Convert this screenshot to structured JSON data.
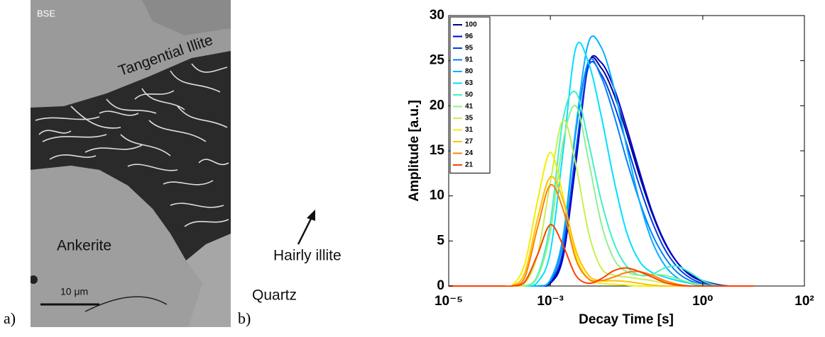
{
  "figure": {
    "panel_labels": [
      "a)",
      "b)"
    ],
    "image": {
      "mode": "BSE",
      "labels": [
        "Tangential Illite",
        "Ankerite",
        "Hairly illite",
        "Quartz"
      ],
      "scale_bar": "10 μm"
    }
  },
  "chart_data": {
    "type": "line",
    "x_label": "Decay Time [s]",
    "y_label": "Amplitude [a.u.]",
    "xscale": "log",
    "xlim": [
      1e-05,
      100
    ],
    "ylim": [
      0,
      30
    ],
    "xticks": [
      {
        "value": 1e-05,
        "label": "10⁻⁵"
      },
      {
        "value": 0.001,
        "label": "10⁻³"
      },
      {
        "value": 1,
        "label": "10⁰"
      },
      {
        "value": 100,
        "label": "10²"
      }
    ],
    "yticks": [
      0,
      5,
      10,
      15,
      20,
      25,
      30
    ],
    "grid": false,
    "legend": "upper left",
    "x": [
      1e-05,
      0.0001,
      0.000178,
      0.000316,
      0.000562,
      0.001,
      0.00178,
      0.00316,
      0.00562,
      0.01,
      0.0178,
      0.0316,
      0.0562,
      0.1,
      0.178,
      0.316,
      0.562,
      1,
      1.78,
      3.16,
      5.62,
      10
    ],
    "series": [
      {
        "name": "100",
        "color": "#00008f",
        "values": [
          0,
          0,
          0,
          0,
          0,
          0.4,
          3.6,
          14.1,
          24.6,
          24.2,
          21.3,
          17.0,
          12.3,
          8.1,
          4.8,
          2.6,
          1.3,
          0.6,
          0.2,
          0,
          0,
          0
        ]
      },
      {
        "name": "96",
        "color": "#0000cc",
        "values": [
          0,
          0,
          0,
          0,
          0,
          0.3,
          3.2,
          13.5,
          24.5,
          24.8,
          22.0,
          17.6,
          12.8,
          8.3,
          4.9,
          2.6,
          1.2,
          0.5,
          0.2,
          0,
          0,
          0
        ]
      },
      {
        "name": "95",
        "color": "#0040e0",
        "values": [
          0,
          0,
          0,
          0,
          0,
          0.5,
          4.0,
          14.8,
          24.3,
          23.5,
          20.2,
          15.8,
          11.2,
          7.2,
          4.1,
          2.1,
          0.9,
          0.3,
          0.1,
          0,
          0,
          0
        ]
      },
      {
        "name": "91",
        "color": "#0080ff",
        "values": [
          0,
          0,
          0,
          0,
          0,
          0.6,
          5.0,
          17.0,
          24.9,
          23.2,
          19.0,
          14.0,
          9.5,
          5.8,
          3.2,
          1.5,
          0.6,
          0.2,
          0,
          0,
          0,
          0
        ]
      },
      {
        "name": "80",
        "color": "#00b0ff",
        "values": [
          0,
          0,
          0,
          0,
          0,
          0.7,
          5.5,
          17.5,
          27.0,
          26.5,
          22.0,
          15.5,
          9.5,
          5.0,
          2.3,
          0.9,
          0.3,
          0.1,
          0,
          0,
          0,
          0
        ]
      },
      {
        "name": "63",
        "color": "#00e0ff",
        "values": [
          0,
          0,
          0,
          0,
          0.45,
          3.8,
          14.9,
          26.4,
          24.8,
          18.9,
          11.8,
          6.0,
          2.8,
          1.5,
          1.0,
          0.6,
          0.3,
          0.1,
          0,
          0,
          0,
          0
        ]
      },
      {
        "name": "50",
        "color": "#40f0c8",
        "values": [
          0,
          0,
          0,
          0,
          1.2,
          7.0,
          18.5,
          21.5,
          16.0,
          9.5,
          4.8,
          2.2,
          1.2,
          1.3,
          2.0,
          2.2,
          1.5,
          0.6,
          0.1,
          0,
          0,
          0
        ]
      },
      {
        "name": "41",
        "color": "#90f090",
        "values": [
          0,
          0,
          0,
          0,
          1.0,
          6.0,
          16.0,
          20.0,
          14.0,
          7.0,
          3.0,
          1.6,
          1.2,
          1.3,
          1.2,
          0.8,
          0.4,
          0.1,
          0,
          0,
          0,
          0
        ]
      },
      {
        "name": "35",
        "color": "#c8f050",
        "values": [
          0,
          0,
          0,
          0.3,
          3.5,
          11.5,
          18.4,
          13.5,
          6.0,
          2.0,
          1.2,
          1.0,
          0.8,
          0.6,
          0.3,
          0.1,
          0,
          0,
          0,
          0,
          0,
          0
        ]
      },
      {
        "name": "31",
        "color": "#f0f000",
        "values": [
          0,
          0,
          0.1,
          2.5,
          9.5,
          14.8,
          10.0,
          3.5,
          0.8,
          0.3,
          0.2,
          0.1,
          0,
          0,
          0,
          0,
          0,
          0,
          0,
          0,
          0,
          0
        ]
      },
      {
        "name": "27",
        "color": "#ffc000",
        "values": [
          0,
          0,
          0,
          1.5,
          7.5,
          12.1,
          9.5,
          4.0,
          1.2,
          0.6,
          0.6,
          0.5,
          0.3,
          0.1,
          0,
          0,
          0,
          0,
          0,
          0,
          0,
          0
        ]
      },
      {
        "name": "24",
        "color": "#ff8000",
        "values": [
          0,
          0,
          0,
          1.0,
          6.5,
          11.2,
          8.5,
          3.0,
          0.8,
          0.6,
          1.0,
          1.5,
          1.6,
          1.2,
          0.6,
          0.2,
          0,
          0,
          0,
          0,
          0,
          0
        ]
      },
      {
        "name": "21",
        "color": "#ff4000",
        "values": [
          0,
          0,
          0,
          0.5,
          3.5,
          6.8,
          4.5,
          1.2,
          0.3,
          0.8,
          1.7,
          2.0,
          1.6,
          1.0,
          0.4,
          0.1,
          0,
          0,
          0,
          0,
          0,
          0
        ]
      }
    ]
  }
}
